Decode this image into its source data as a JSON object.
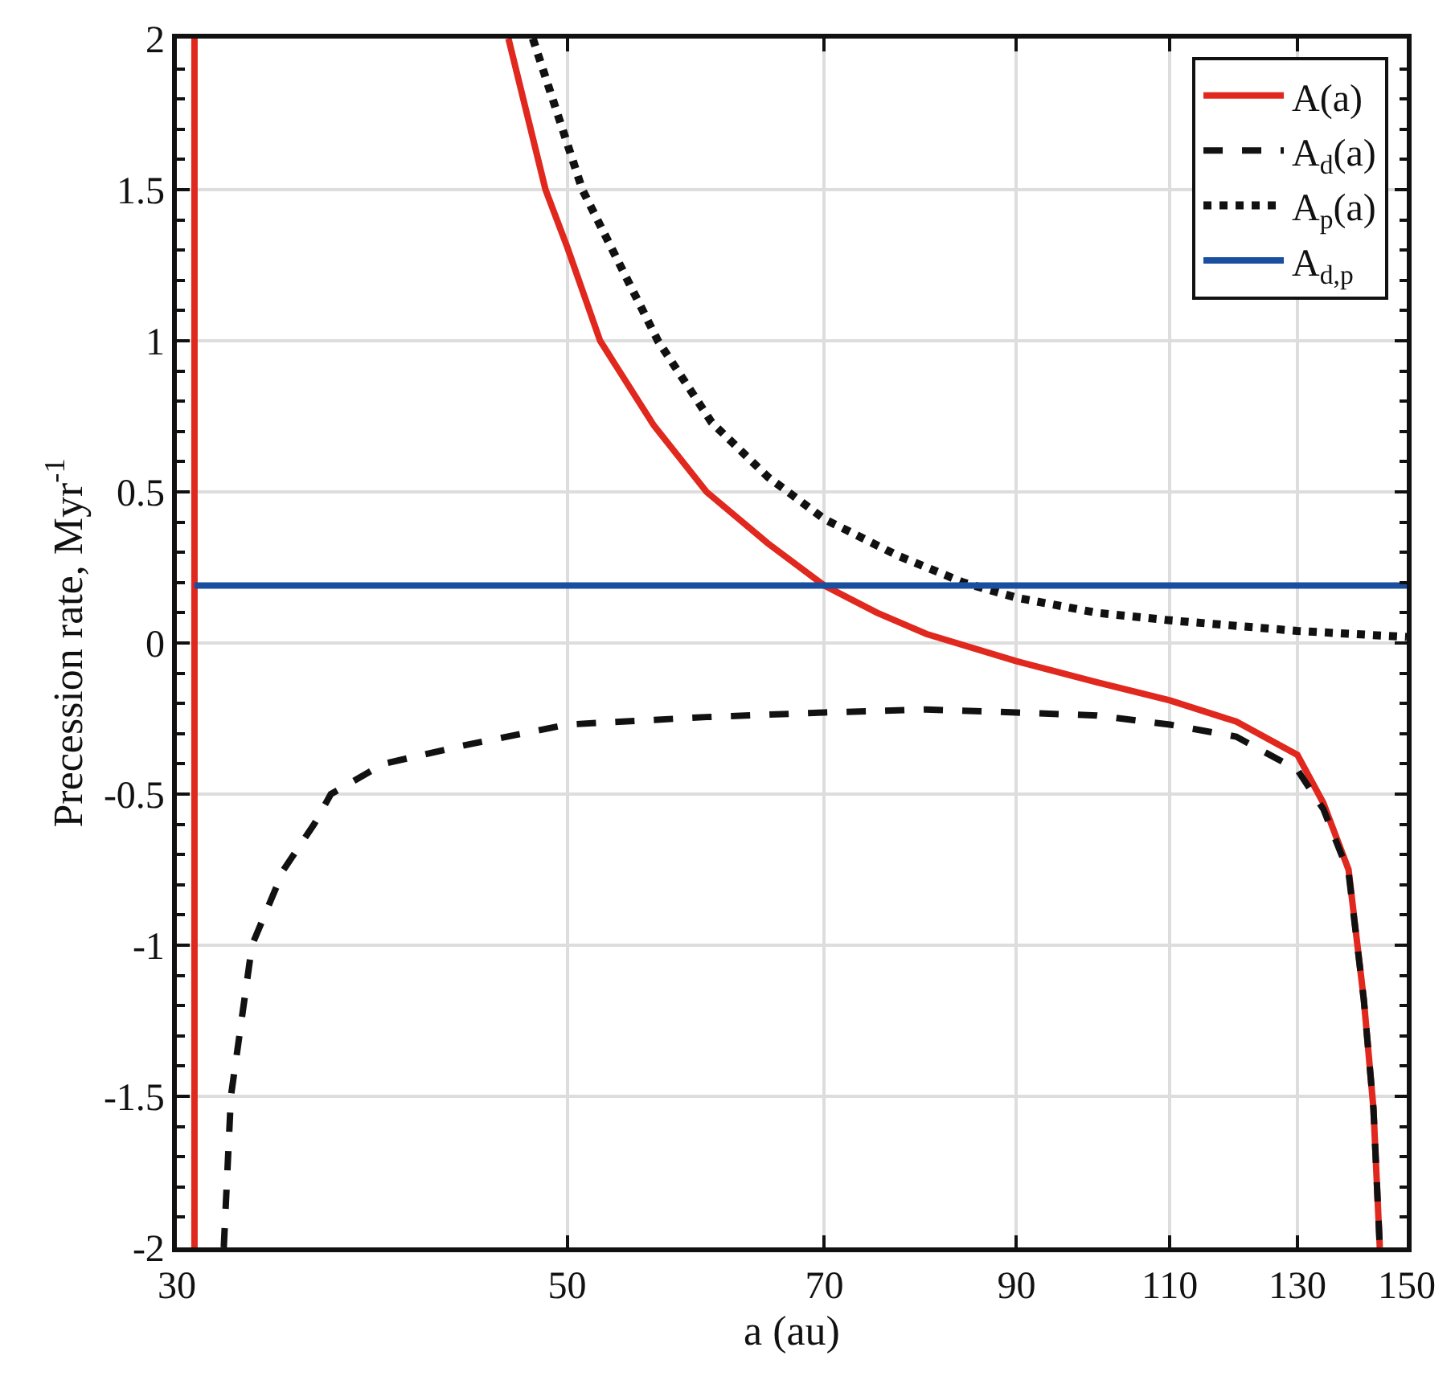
{
  "chart_data": {
    "type": "line",
    "xlabel": "a (au)",
    "ylabel": "Precession rate, Myr$^{-1}$",
    "log": "x",
    "xlim": [
      30,
      150
    ],
    "xticks": [
      30,
      50,
      70,
      90,
      110,
      130,
      150
    ],
    "ylim": [
      -2,
      2
    ],
    "yticks": [
      -2,
      -1.5,
      -1,
      -0.5,
      0,
      0.5,
      1,
      1.5,
      2
    ],
    "grid": true,
    "legend": "top right",
    "series": [
      {
        "name": "A(a)",
        "color": "#e0281e",
        "line_style": "solid",
        "x": [
          30.7,
          30.7,
          null,
          46.3,
          48.6,
          50,
          52.2,
          56,
          60,
          65,
          70,
          75,
          80,
          90,
          100,
          110,
          120,
          130,
          134.5,
          139,
          141.8,
          143.6,
          144.8
        ],
        "values": [
          -2,
          2,
          null,
          2,
          1.5,
          1.31,
          1.0,
          0.72,
          0.5,
          0.33,
          0.19,
          0.1,
          0.03,
          -0.06,
          -0.13,
          -0.19,
          -0.26,
          -0.37,
          -0.53,
          -0.75,
          -1.18,
          -1.54,
          -2
        ]
      },
      {
        "name": "A$_{d}$(a)",
        "color": "#111111",
        "line_style": "dashed",
        "x": [
          31.9,
          32.2,
          33.1,
          34.5,
          35.9,
          36.7,
          39.3,
          43.6,
          50,
          60,
          70,
          80,
          90,
          100,
          110,
          120,
          130,
          134.5,
          139,
          141.8,
          143.6,
          144.8
        ],
        "values": [
          -2,
          -1.5,
          -1,
          -0.75,
          -0.6,
          -0.5,
          -0.4,
          -0.34,
          -0.27,
          -0.245,
          -0.23,
          -0.22,
          -0.23,
          -0.24,
          -0.27,
          -0.31,
          -0.42,
          -0.55,
          -0.76,
          -1.18,
          -1.54,
          -2
        ]
      },
      {
        "name": "A$_{p}$(a)",
        "color": "#111111",
        "line_style": "dotted",
        "x": [
          47.8,
          51,
          56.3,
          60.4,
          65,
          70,
          77,
          84,
          90,
          100,
          110,
          130,
          150
        ],
        "values": [
          2,
          1.5,
          1,
          0.73,
          0.55,
          0.41,
          0.29,
          0.2,
          0.15,
          0.1,
          0.075,
          0.04,
          0.02
        ]
      },
      {
        "name": "A$_{d,p}$",
        "color": "#1a4fa0",
        "line_style": "solid",
        "x": [
          30.7,
          150
        ],
        "values": [
          0.19,
          0.19
        ]
      }
    ]
  }
}
